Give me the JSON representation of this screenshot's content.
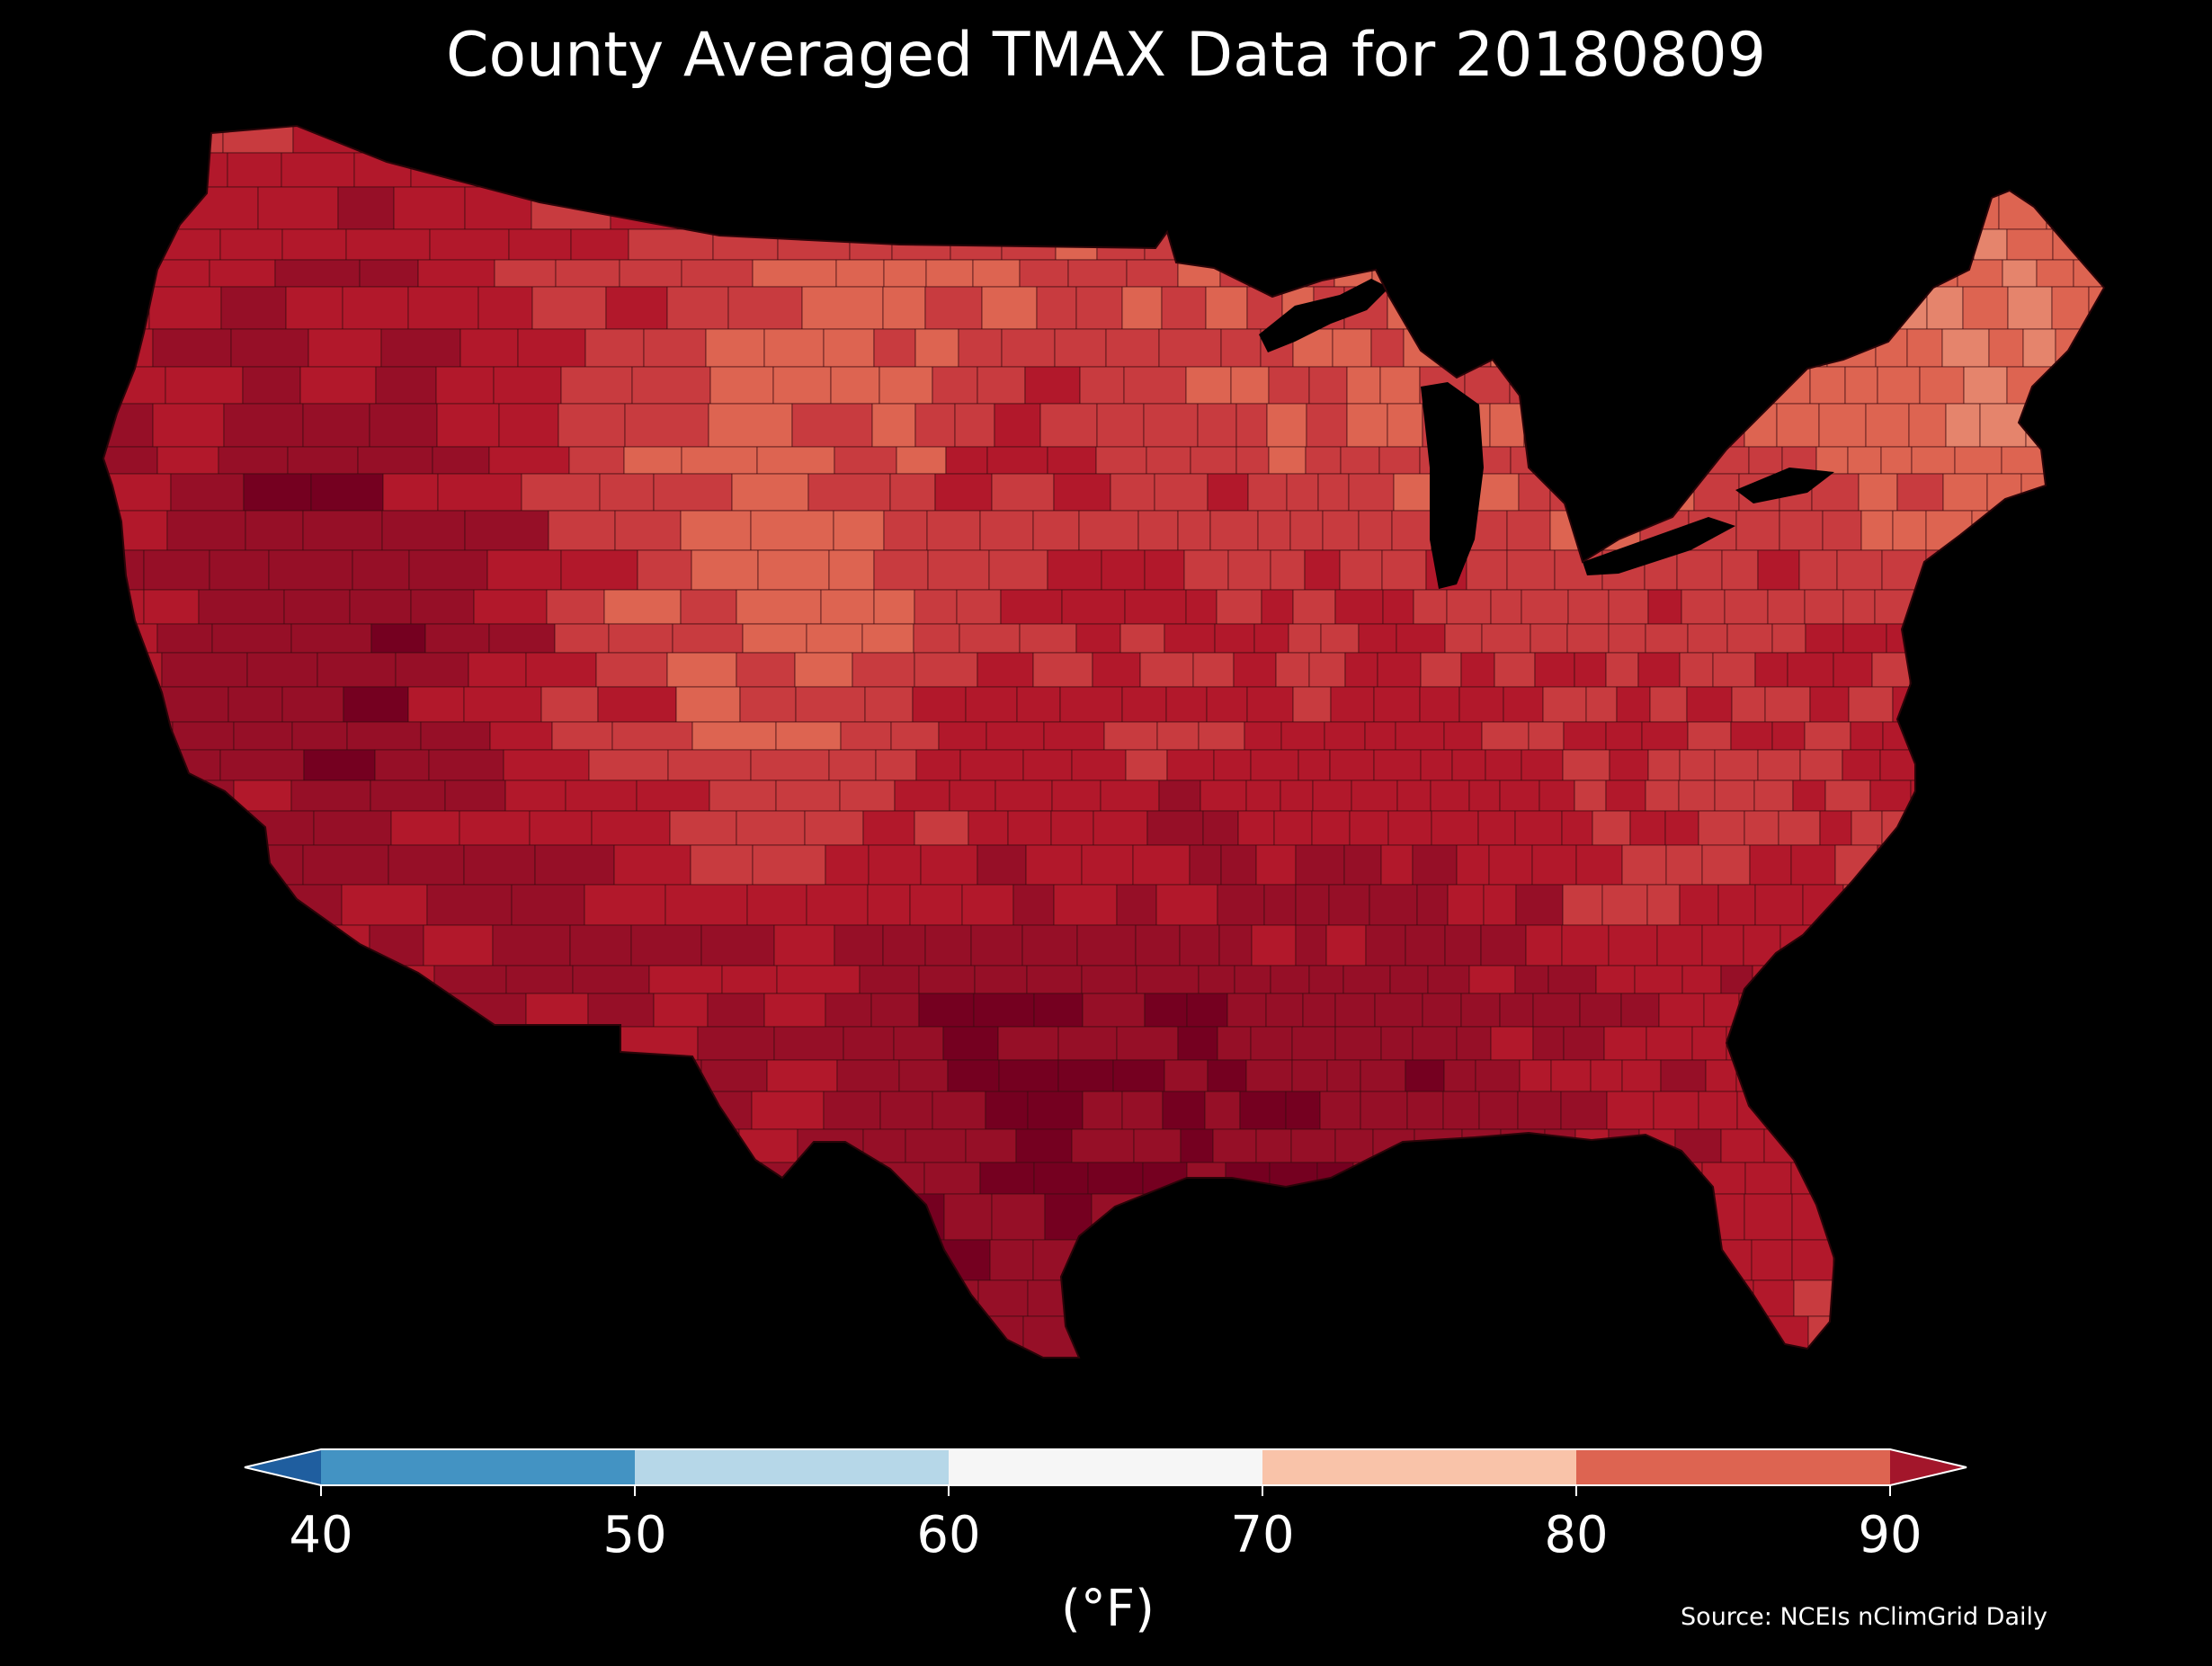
{
  "title": "County Averaged TMAX Data for 20180809",
  "source": "Source: NCEIs nClimGrid Daily",
  "colorbar": {
    "label": "(°F)",
    "ticks": [
      "40",
      "50",
      "60",
      "70",
      "80",
      "90"
    ],
    "min": 40,
    "max": 90,
    "extend": "both",
    "bins": [
      {
        "from": 40,
        "to": 50,
        "color": "#4393c3"
      },
      {
        "from": 50,
        "to": 60,
        "color": "#b6d7e8"
      },
      {
        "from": 60,
        "to": 70,
        "color": "#f6f6f6"
      },
      {
        "from": 70,
        "to": 80,
        "color": "#f9c3a9"
      },
      {
        "from": 80,
        "to": 90,
        "color": "#dd6451"
      }
    ],
    "under_color": "#1f5e9f",
    "over_color": "#a3162b"
  },
  "map": {
    "region": "Contiguous United States",
    "unit": "county",
    "background": "#000000",
    "palette": [
      "#f9c3a9",
      "#e5846c",
      "#dd6451",
      "#c83b3f",
      "#b2182b",
      "#960f27",
      "#750020"
    ]
  }
}
